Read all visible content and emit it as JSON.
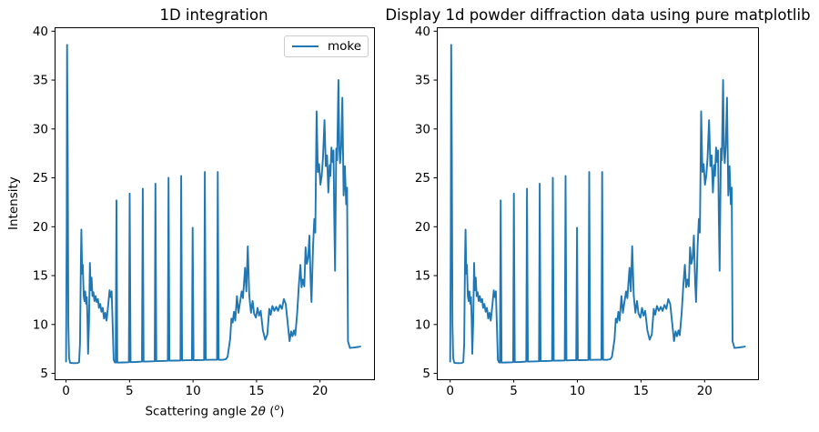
{
  "figure": {
    "background": "#ffffff",
    "axis_color": "#000000",
    "line_color": "#1f77b4",
    "legend_border_color": "#cccccc"
  },
  "chart_data": [
    {
      "type": "line",
      "title": "1D integration",
      "xlabel": "Scattering angle 2θ (ᵒ)",
      "xlabel_parts": {
        "prefix": "Scattering angle 2",
        "theta": "θ",
        "open": " (",
        "sup": "o",
        "close": ")"
      },
      "ylabel": "Intensity",
      "legend": [
        "moke"
      ],
      "legend_position": "upper right",
      "grid": false,
      "xlim": [
        -0.9,
        24.25
      ],
      "ylim": [
        4.4,
        40.4
      ],
      "xticks": [
        0,
        5,
        10,
        15,
        20
      ],
      "yticks": [
        5,
        10,
        15,
        20,
        25,
        30,
        35,
        40
      ],
      "series": [
        {
          "name": "moke",
          "color": "#1f77b4",
          "x": [
            0,
            0.05,
            0.08,
            0.13,
            0.18,
            0.24,
            0.32,
            0.6,
            0.9,
            1.03,
            1.1,
            1.17,
            1.21,
            1.27,
            1.32,
            1.39,
            1.45,
            1.51,
            1.58,
            1.64,
            1.69,
            1.74,
            1.81,
            1.88,
            1.94,
            2.01,
            2.08,
            2.16,
            2.24,
            2.33,
            2.41,
            2.51,
            2.59,
            2.69,
            2.79,
            2.89,
            2.99,
            3.09,
            3.19,
            3.31,
            3.43,
            3.51,
            3.59,
            3.67,
            3.75,
            3.84,
            3.91,
            3.97,
            4.04,
            4.5,
            4.95,
            5.01,
            5.08,
            5.55,
            5.98,
            6.04,
            6.11,
            6.55,
            6.98,
            7.04,
            7.11,
            7.6,
            8.01,
            8.07,
            8.14,
            8.6,
            9.01,
            9.07,
            9.14,
            9.55,
            9.91,
            9.97,
            10.04,
            10.5,
            10.87,
            10.93,
            11,
            11.5,
            11.89,
            11.95,
            12.02,
            12.3,
            12.58,
            12.72,
            12.82,
            12.92,
            13.02,
            13.12,
            13.22,
            13.32,
            13.46,
            13.58,
            13.7,
            13.83,
            13.93,
            14.1,
            14.2,
            14.31,
            14.43,
            14.56,
            14.69,
            14.81,
            14.95,
            15.08,
            15.2,
            15.33,
            15.5,
            15.68,
            15.85,
            16,
            16.12,
            16.25,
            16.4,
            16.55,
            16.7,
            16.85,
            17,
            17.15,
            17.3,
            17.45,
            17.6,
            17.72,
            17.83,
            17.95,
            18.05,
            18.2,
            18.33,
            18.45,
            18.55,
            18.65,
            18.76,
            18.86,
            18.96,
            19.06,
            19.16,
            19.26,
            19.33,
            19.45,
            19.55,
            19.63,
            19.73,
            19.83,
            19.93,
            20.03,
            20.13,
            20.23,
            20.35,
            20.45,
            20.55,
            20.65,
            20.75,
            20.82,
            20.9,
            21,
            21.06,
            21.12,
            21.18,
            21.28,
            21.35,
            21.45,
            21.52,
            21.58,
            21.66,
            21.76,
            21.86,
            21.96,
            22.06,
            22.13,
            22.2,
            22.35,
            22.7,
            23,
            23.17
          ],
          "y": [
            6.2,
            20,
            38.6,
            28,
            10,
            6.6,
            6.08,
            6.05,
            6.06,
            6.15,
            8,
            16.5,
            19.7,
            15.2,
            16.1,
            12.9,
            12.4,
            13.4,
            12.1,
            12.8,
            10.6,
            7,
            10.2,
            16.3,
            13.5,
            14.8,
            12.9,
            13.3,
            12.4,
            12.9,
            12.3,
            12.6,
            11.7,
            12.1,
            11.3,
            11.7,
            10.6,
            11.2,
            10.4,
            11.9,
            13.5,
            12.8,
            13.4,
            10,
            6.4,
            6.12,
            6.1,
            22.7,
            6.1,
            6.12,
            6.14,
            23.4,
            6.15,
            6.17,
            6.2,
            23.9,
            6.2,
            6.22,
            6.24,
            24.4,
            6.25,
            6.27,
            6.29,
            25,
            6.3,
            6.31,
            6.32,
            25.2,
            6.33,
            6.34,
            6.35,
            19.9,
            6.35,
            6.36,
            6.37,
            25.6,
            6.38,
            6.39,
            6.4,
            25.6,
            6.4,
            6.38,
            6.45,
            6.7,
            7.6,
            8.5,
            10.6,
            10.2,
            11.3,
            10.4,
            12.9,
            11.2,
            12.3,
            13.4,
            12.7,
            15.8,
            13.4,
            18,
            13,
            11.2,
            12.4,
            11.1,
            10.7,
            11.7,
            10.9,
            11.4,
            9.4,
            8.45,
            9,
            11.6,
            11,
            11.9,
            11.4,
            11.8,
            11.4,
            12,
            11.6,
            12.6,
            12.1,
            10.2,
            8.3,
            9.3,
            8.8,
            9.4,
            8.9,
            11.2,
            14,
            16.1,
            13.8,
            14.6,
            13.9,
            17.9,
            16.2,
            16.8,
            19.1,
            14.3,
            12.3,
            18,
            20.8,
            19.4,
            31.8,
            25.6,
            26.4,
            24.3,
            25.2,
            27,
            30.9,
            26.2,
            27.3,
            23.5,
            26.3,
            25.2,
            28.1,
            26.6,
            27.8,
            21,
            15.5,
            28,
            26.8,
            35,
            28,
            26.5,
            28.2,
            33.2,
            23.2,
            26.2,
            22.3,
            24,
            8.3,
            7.6,
            7.65,
            7.7,
            7.75
          ]
        }
      ]
    },
    {
      "type": "line",
      "title": "Display 1d powder diffraction data using pure matplotlib",
      "xlabel": "",
      "ylabel": "",
      "legend": null,
      "grid": false,
      "xlim": [
        -1.05,
        24.2
      ],
      "ylim": [
        4.4,
        40.4
      ],
      "xticks": [
        0,
        5,
        10,
        15,
        20
      ],
      "yticks": [
        5,
        10,
        15,
        20,
        25,
        30,
        35,
        40
      ],
      "series_from_chart": 0,
      "series_note": "plots the identical moke data as chart_data[0]"
    }
  ]
}
